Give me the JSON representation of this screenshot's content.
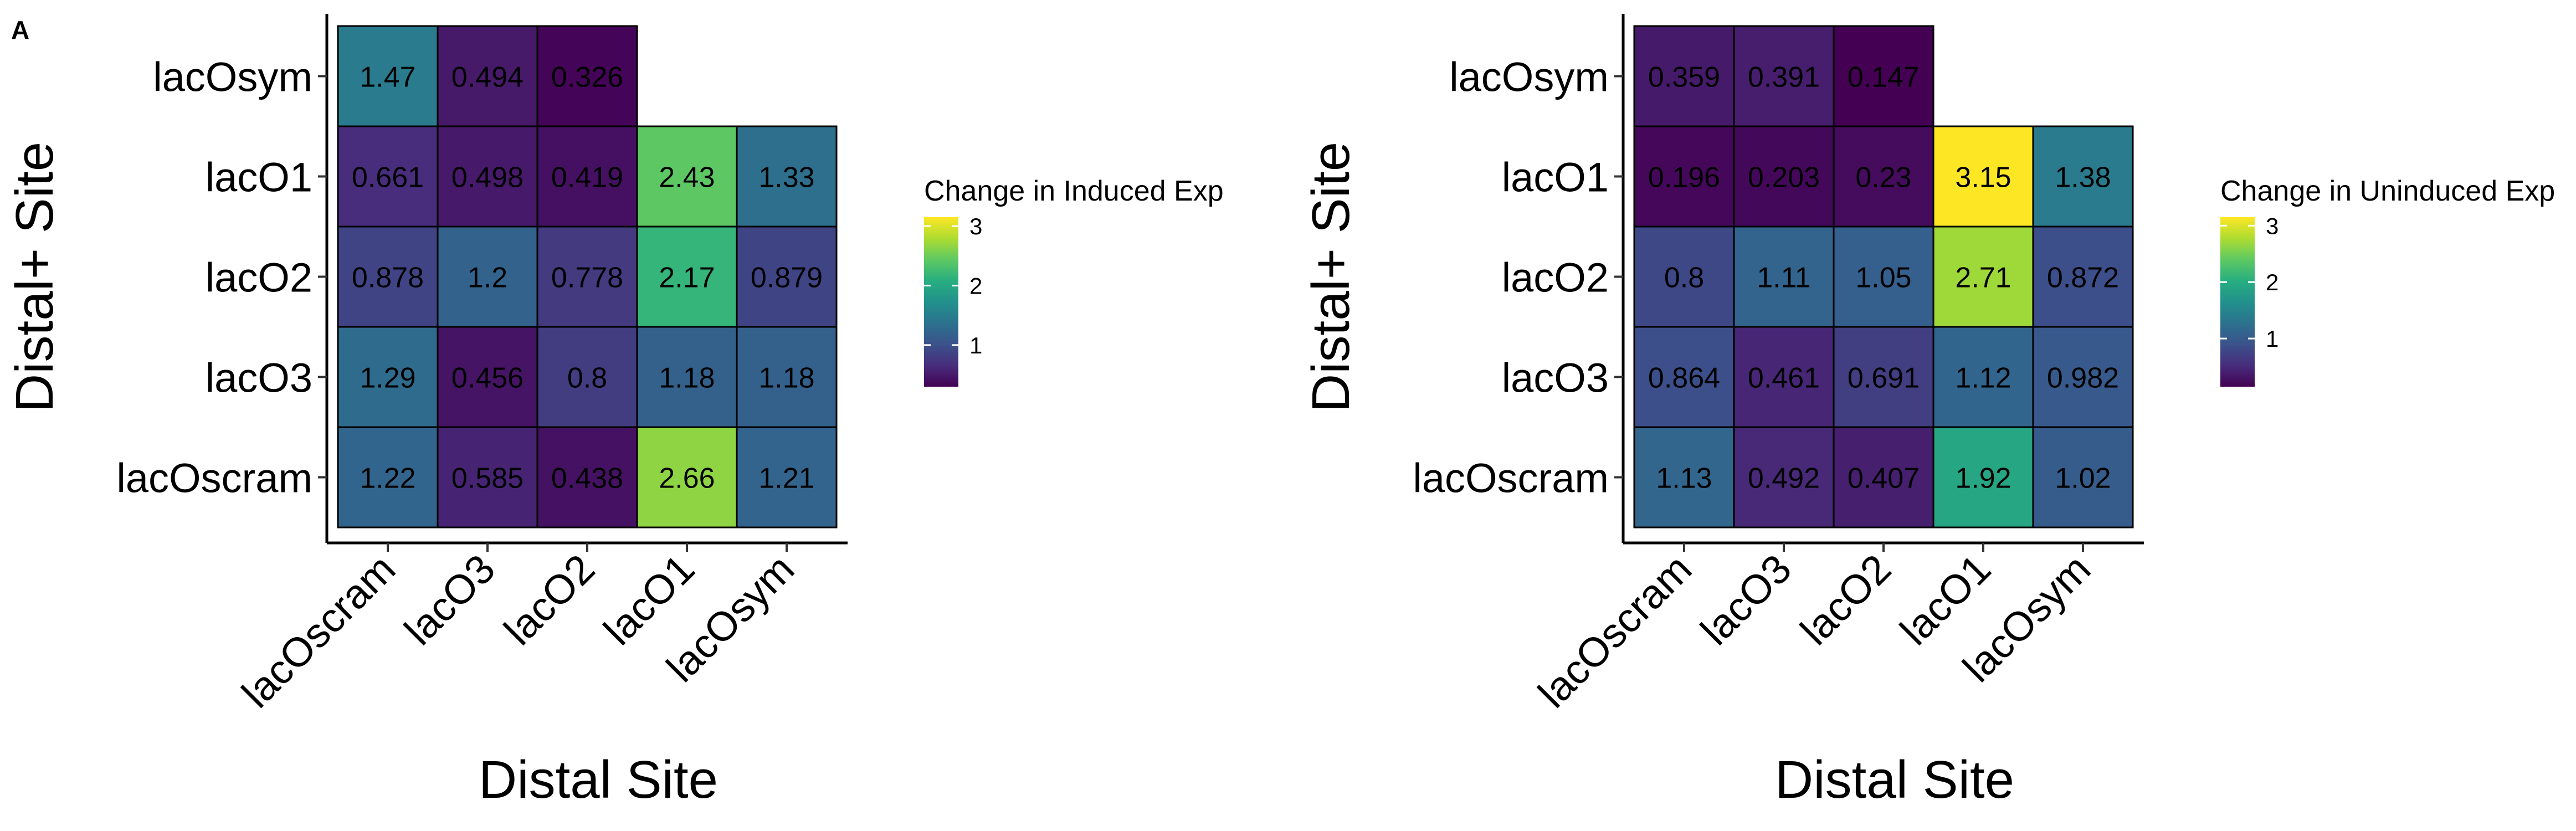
{
  "panel_label": "A",
  "chart_data": [
    {
      "type": "heatmap",
      "xlabel": "Distal Site",
      "ylabel": "Distal+ Site",
      "x_categories": [
        "lacOscram",
        "lacO3",
        "lacO2",
        "lacO1",
        "lacOsym"
      ],
      "y_categories": [
        "lacOsym",
        "lacO1",
        "lacO2",
        "lacO3",
        "lacOscram"
      ],
      "values": [
        [
          1.47,
          0.494,
          0.326,
          null,
          null
        ],
        [
          0.661,
          0.498,
          0.419,
          2.43,
          1.33
        ],
        [
          0.878,
          1.2,
          0.778,
          2.17,
          0.879
        ],
        [
          1.29,
          0.456,
          0.8,
          1.18,
          1.18
        ],
        [
          1.22,
          0.585,
          0.438,
          2.66,
          1.21
        ]
      ],
      "legend": {
        "title": "Change in Induced Exp",
        "ticks": [
          1,
          2,
          3
        ],
        "min": 0.3,
        "max": 3.15
      },
      "colormap": "viridis",
      "grid": false
    },
    {
      "type": "heatmap",
      "xlabel": "Distal Site",
      "ylabel": "Distal+ Site",
      "x_categories": [
        "lacOscram",
        "lacO3",
        "lacO2",
        "lacO1",
        "lacOsym"
      ],
      "y_categories": [
        "lacOsym",
        "lacO1",
        "lacO2",
        "lacO3",
        "lacOscram"
      ],
      "values": [
        [
          0.359,
          0.391,
          0.147,
          null,
          null
        ],
        [
          0.196,
          0.203,
          0.23,
          3.15,
          1.38
        ],
        [
          0.8,
          1.11,
          1.05,
          2.71,
          0.872
        ],
        [
          0.864,
          0.461,
          0.691,
          1.12,
          0.982
        ],
        [
          1.13,
          0.492,
          0.407,
          1.92,
          1.02
        ]
      ],
      "legend": {
        "title": "Change in Uninduced Exp",
        "ticks": [
          1,
          2,
          3
        ],
        "min": 0.147,
        "max": 3.15
      },
      "colormap": "viridis",
      "grid": false
    }
  ]
}
